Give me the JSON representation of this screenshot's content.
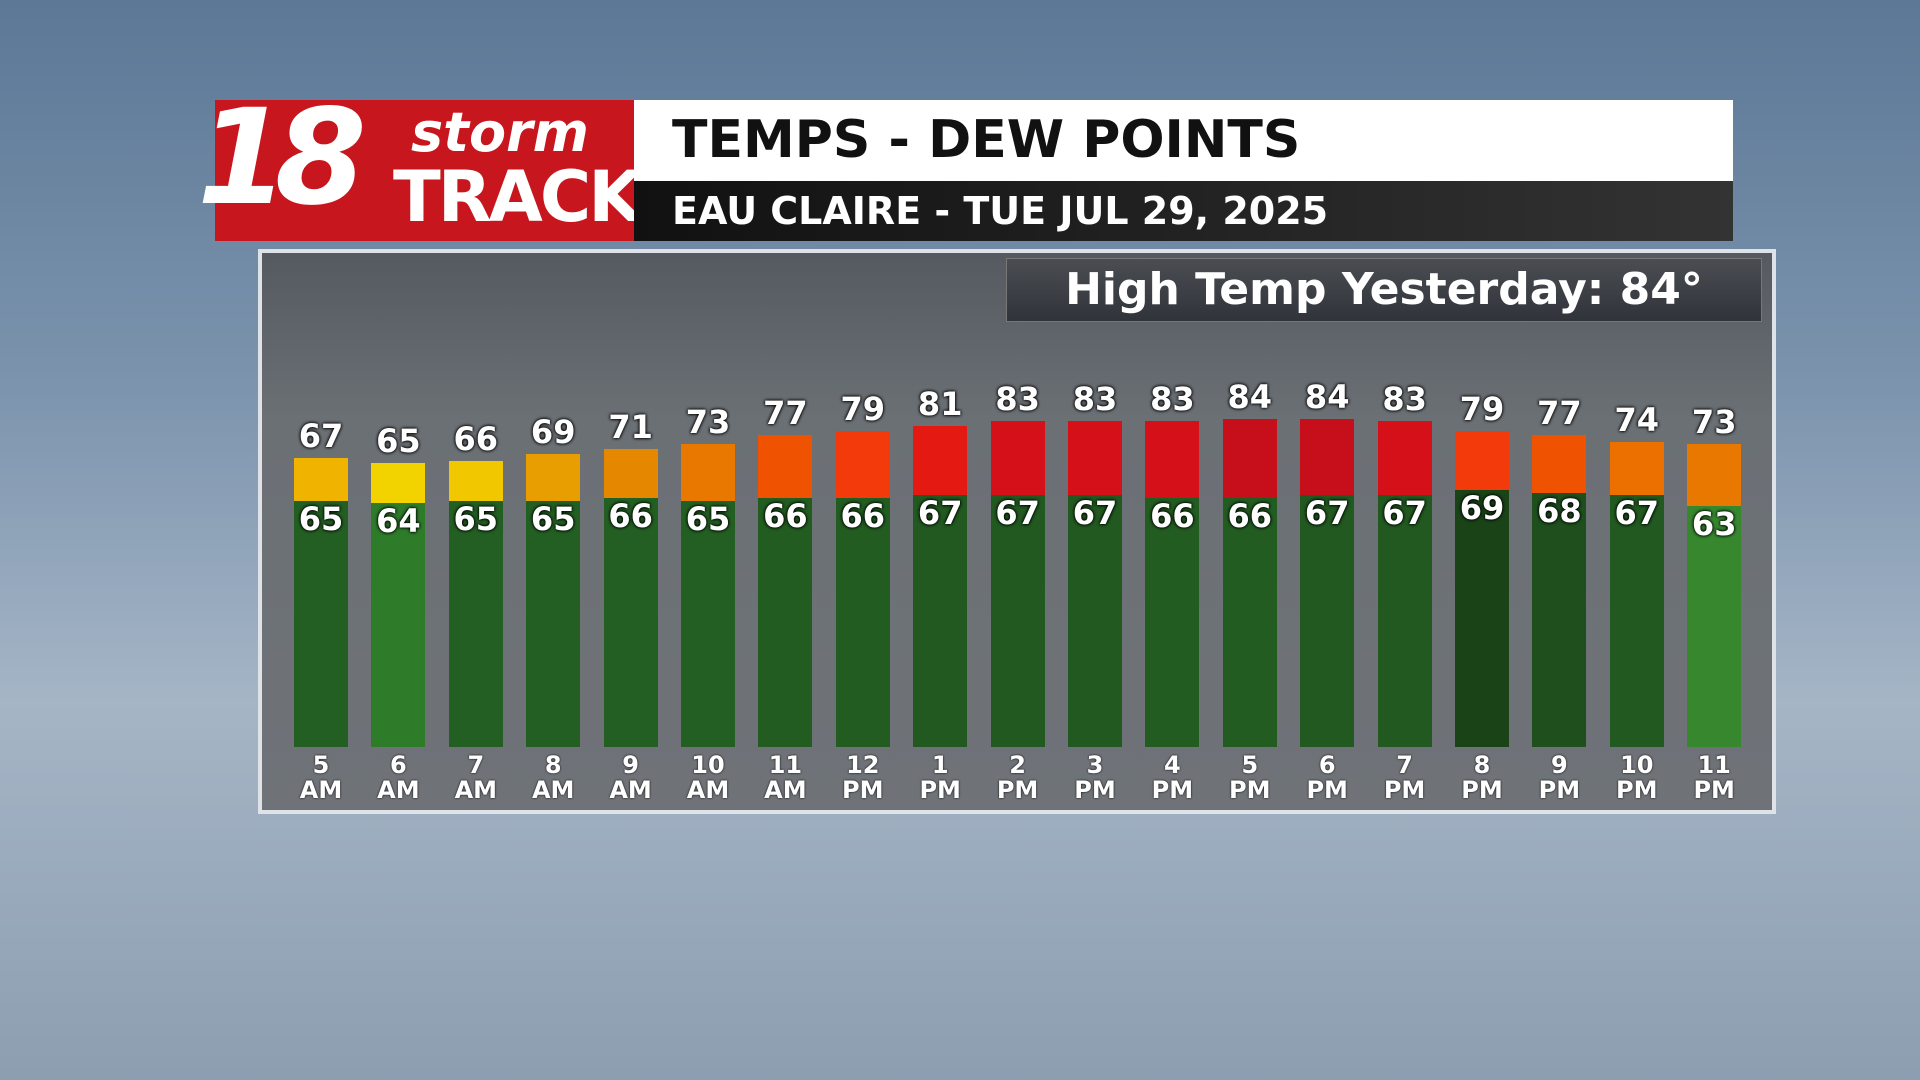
{
  "logo": {
    "number": "18",
    "word1": "storm",
    "word2": "TRACK"
  },
  "chart_data": {
    "type": "bar",
    "title": "TEMPS - DEW POINTS",
    "subtitle": "EAU CLAIRE - TUE JUL 29, 2025",
    "annotation": "High Temp Yesterday: 84°",
    "categories": [
      "5 AM",
      "6 AM",
      "7 AM",
      "8 AM",
      "9 AM",
      "10 AM",
      "11 AM",
      "12 PM",
      "1 PM",
      "2 PM",
      "3 PM",
      "4 PM",
      "5 PM",
      "6 PM",
      "7 PM",
      "8 PM",
      "9 PM",
      "10 PM",
      "11 PM"
    ],
    "series": [
      {
        "values": [
          67,
          65,
          66,
          69,
          71,
          73,
          77,
          79,
          81,
          83,
          83,
          83,
          84,
          84,
          83,
          79,
          77,
          74,
          73
        ],
        "colors": [
          "#f0b400",
          "#f2d300",
          "#f1c800",
          "#e89e00",
          "#e58800",
          "#e97800",
          "#ef5200",
          "#f23a0a",
          "#e41a12",
          "#d51018",
          "#d51018",
          "#d51018",
          "#c70f1c",
          "#c70f1c",
          "#d51018",
          "#f23a0a",
          "#ef5200",
          "#ec7000",
          "#e97800"
        ]
      },
      {
        "values": [
          65,
          64,
          65,
          65,
          66,
          65,
          66,
          66,
          67,
          67,
          67,
          66,
          66,
          67,
          67,
          69,
          68,
          67,
          63
        ],
        "colors": [
          "#235f22",
          "#2e7b2a",
          "#235f22",
          "#235f22",
          "#235f22",
          "#235f22",
          "#225c21",
          "#225c21",
          "#215920",
          "#215920",
          "#215920",
          "#225c21",
          "#225c21",
          "#215920",
          "#215920",
          "#1a4318",
          "#1e4f1d",
          "#215920",
          "#37872f"
        ]
      }
    ]
  }
}
